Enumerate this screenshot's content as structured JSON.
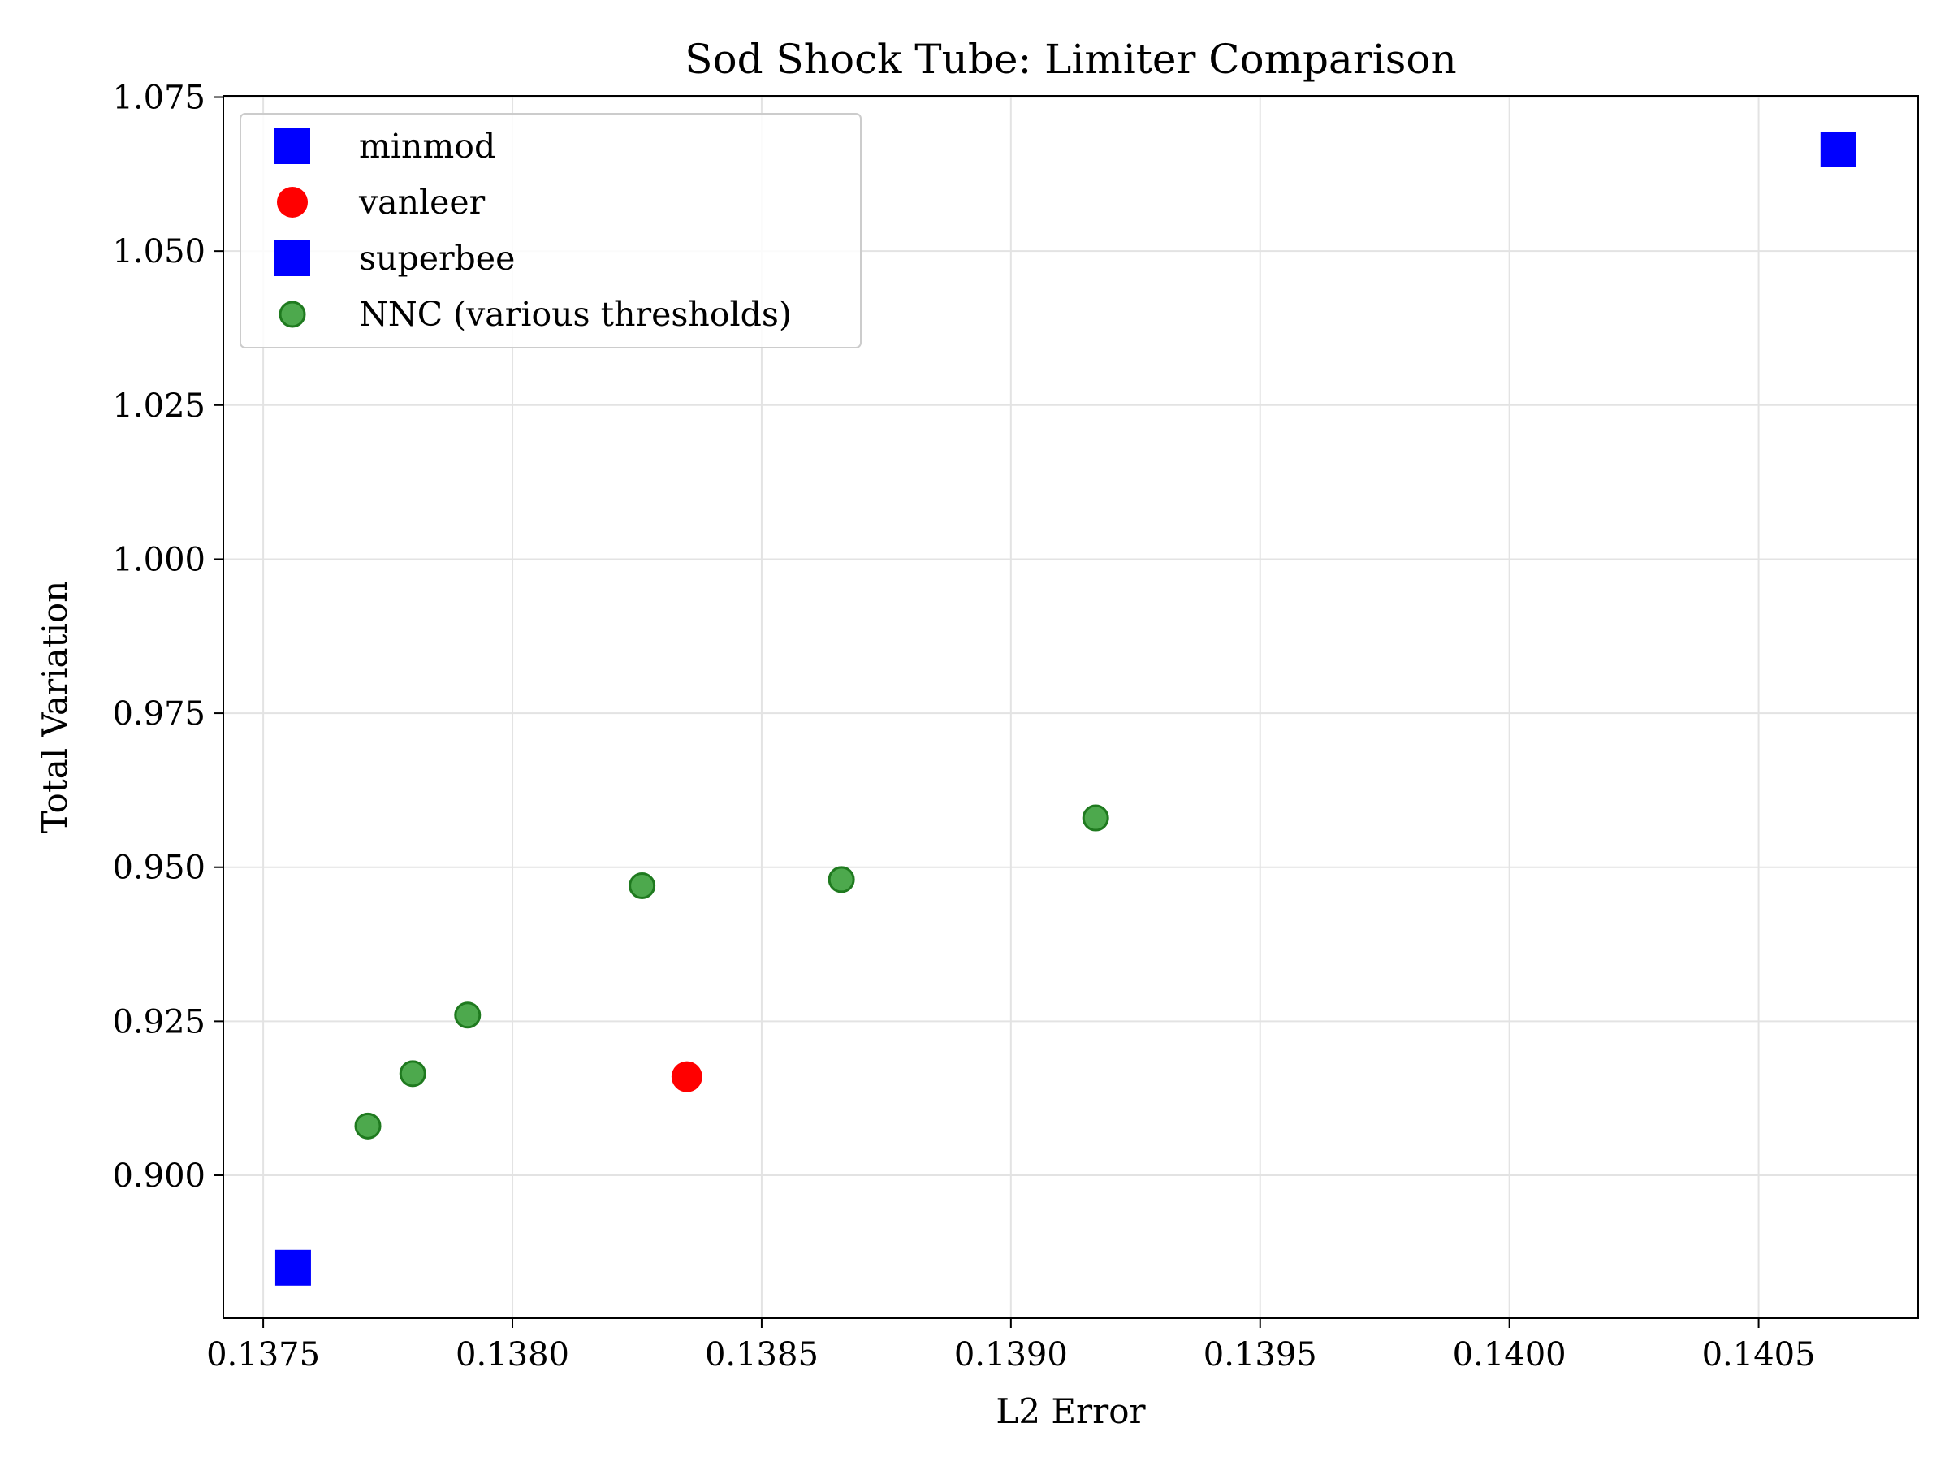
{
  "chart_data": {
    "type": "scatter",
    "title": "Sod Shock Tube: Limiter Comparison",
    "xlabel": "L2 Error",
    "ylabel": "Total Variation",
    "xlim": [
      0.13742,
      0.14082
    ],
    "ylim": [
      0.8768,
      1.0752
    ],
    "xticks": [
      0.1375,
      0.138,
      0.1385,
      0.139,
      0.1395,
      0.14,
      0.1405
    ],
    "xtick_labels": [
      "0.1375",
      "0.1380",
      "0.1385",
      "0.1390",
      "0.1395",
      "0.1400",
      "0.1405"
    ],
    "yticks": [
      0.9,
      0.925,
      0.95,
      0.975,
      1.0,
      1.025,
      1.05,
      1.075
    ],
    "ytick_labels": [
      "0.900",
      "0.925",
      "0.950",
      "0.975",
      "1.000",
      "1.025",
      "1.050",
      "1.075"
    ],
    "grid": true,
    "legend_position": "top-left",
    "series": [
      {
        "name": "minmod",
        "marker": "square",
        "color": "#0000ff",
        "points": [
          [
            0.13756,
            0.885
          ]
        ]
      },
      {
        "name": "vanleer",
        "marker": "circle",
        "color": "#ff0000",
        "points": [
          [
            0.13835,
            0.916
          ]
        ]
      },
      {
        "name": "superbee",
        "marker": "square",
        "color": "#0000ff",
        "points": [
          [
            0.14066,
            1.0665
          ]
        ]
      },
      {
        "name": "NNC (various thresholds)",
        "marker": "circle-small",
        "color": "#2e9a2e",
        "points": [
          [
            0.13771,
            0.908
          ],
          [
            0.1378,
            0.9165
          ],
          [
            0.13791,
            0.926
          ],
          [
            0.13826,
            0.947
          ],
          [
            0.13866,
            0.948
          ],
          [
            0.13917,
            0.958
          ]
        ]
      }
    ]
  }
}
